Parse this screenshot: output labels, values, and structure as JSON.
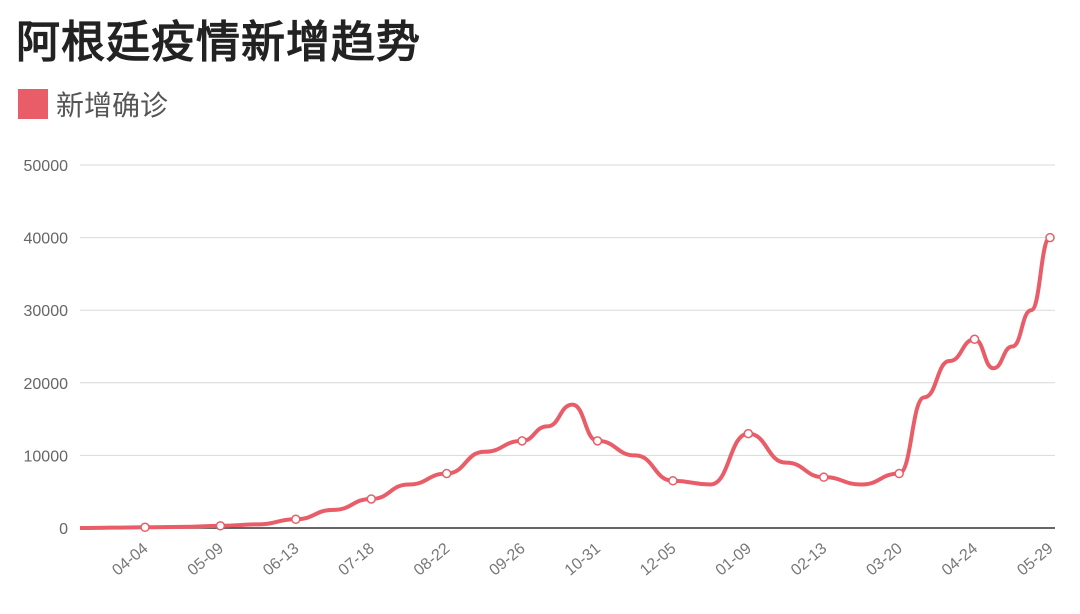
{
  "title": "阿根廷疫情新增趋势",
  "legend": {
    "label": "新增确诊",
    "color": "#e85d68"
  },
  "chart_data": {
    "type": "line",
    "title": "阿根廷疫情新增趋势",
    "xlabel": "",
    "ylabel": "",
    "ylim": [
      0,
      50000
    ],
    "yticks": [
      0,
      10000,
      20000,
      30000,
      40000,
      50000
    ],
    "xtick_labels": [
      "04-04",
      "05-09",
      "06-13",
      "07-18",
      "08-22",
      "09-26",
      "10-31",
      "12-05",
      "01-09",
      "02-13",
      "03-20",
      "04-24",
      "05-29"
    ],
    "grid": true,
    "legend_position": "top-left",
    "series": [
      {
        "name": "新增确诊",
        "color": "#e85d68",
        "x": [
          "03-10",
          "03-24",
          "04-04",
          "04-20",
          "05-09",
          "05-25",
          "06-13",
          "07-01",
          "07-18",
          "08-05",
          "08-22",
          "09-08",
          "09-26",
          "10-12",
          "10-21",
          "10-31",
          "11-15",
          "12-05",
          "12-20",
          "01-09",
          "01-25",
          "02-13",
          "03-01",
          "03-20",
          "04-05",
          "04-14",
          "04-24",
          "05-05",
          "05-14",
          "05-22",
          "05-29"
        ],
        "values": [
          0,
          50,
          100,
          150,
          300,
          500,
          1200,
          2500,
          4000,
          6000,
          7500,
          10500,
          12000,
          14000,
          17000,
          12000,
          10000,
          6500,
          6000,
          13000,
          9000,
          7000,
          6000,
          7500,
          18000,
          23000,
          26000,
          22000,
          25000,
          30000,
          40000
        ],
        "marked_points": [
          "04-04",
          "05-09",
          "06-13",
          "07-18",
          "08-22",
          "09-26",
          "10-31",
          "12-05",
          "01-09",
          "02-13",
          "03-20",
          "04-24",
          "05-29"
        ]
      }
    ]
  }
}
